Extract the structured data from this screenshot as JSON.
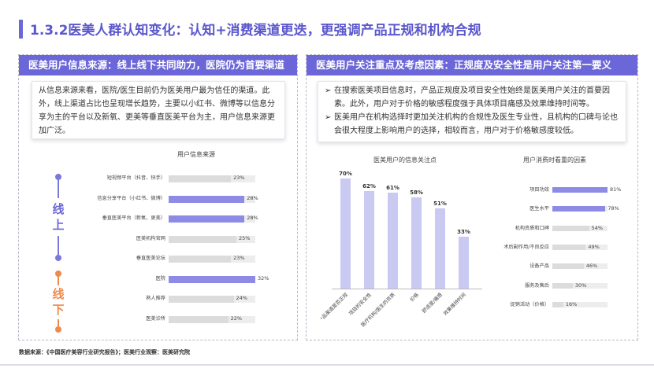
{
  "page_title": "1.3.2医美人群认知变化：认知+消费渠道更迭，更强调产品正规和机构合规",
  "left_panel": {
    "header": "医美用户信息来源：线上线下共同助力，医院仍为首要渠道",
    "description": "从信息来源来看，医院/医生目前仍为医美用户最为信任的渠道。此外，线上渠道占比也呈现增长趋势，主要以小红书、微博等以信息分享为主的平台以及新氧、更美等垂直医美平台为主，用户信息来源更加广泛。",
    "timeline": {
      "online_label": "线上",
      "offline_label": "线下"
    }
  },
  "right_panel": {
    "header": "医美用户关注重点及考虑因素：正规度及安全性是用户关注第一要义",
    "bullets": [
      "在搜索医美项目信息时，产品正规度及项目安全性始终是医美用户关注的首要因素。此外，用户对于价格的敏感程度强于具体项目痛感及效果维持时间等。",
      "医美用户在机构选择时更加关注机构的合规性及医生专业性，且机构的口碑与论也会很大程度上影响用户的选择，相较而言，用户对于价格敏感度较低。"
    ],
    "bullet_marker": "➢"
  },
  "footer": "数据来源：《中国医疗美容行业研究报告》；医美行业观察：医美研究院",
  "colors": {
    "accent": "#6b67d8",
    "bar_highlight": "#8d8be6",
    "bar_normal": "#dcdcdc",
    "vbar": "#c9c9f2",
    "online": "#7b77dd",
    "offline": "#f08a4b"
  },
  "chart_data": [
    {
      "type": "bar",
      "orientation": "horizontal",
      "title": "用户信息来源",
      "categories": [
        "短视频平台（抖音、快手）",
        "信息分享平台（小红书、微博）",
        "垂直医美平台（新氧、更美）",
        "医美机构官网",
        "垂直医美论坛",
        "医院",
        "熟人推荐",
        "医美诊所"
      ],
      "values": [
        23,
        28,
        28,
        25,
        23,
        32,
        24,
        22
      ],
      "labels": [
        "23%",
        "28%",
        "28%",
        "25%",
        "23%",
        "32%",
        "24%",
        "22%"
      ],
      "highlight": [
        false,
        true,
        true,
        false,
        false,
        true,
        false,
        false
      ],
      "xlim": [
        0,
        32
      ]
    },
    {
      "type": "bar",
      "orientation": "vertical",
      "title": "医美用户的信息关注点",
      "categories": [
        "产品渠道是否正规",
        "项目的安全性",
        "医疗机构/医生的资质",
        "价格",
        "舒适度/痛感",
        "效果维持时间"
      ],
      "values": [
        70,
        62,
        61,
        58,
        51,
        33
      ],
      "labels": [
        "70%",
        "62%",
        "61%",
        "58%",
        "51%",
        "33%"
      ],
      "ylim": [
        0,
        70
      ]
    },
    {
      "type": "bar",
      "orientation": "horizontal",
      "title": "用户消费时看重的因素",
      "categories": [
        "项目功效",
        "医生水平",
        "机构资质和口碑",
        "术后副作用/不良反应",
        "设备产品",
        "服务及售后",
        "促销活动（价格）"
      ],
      "values": [
        81,
        78,
        54,
        49,
        46,
        30,
        16
      ],
      "labels": [
        "81%",
        "78%",
        "54%",
        "49%",
        "46%",
        "30%",
        "16%"
      ],
      "highlight": [
        true,
        true,
        false,
        false,
        false,
        false,
        false
      ],
      "xlim": [
        0,
        81
      ]
    }
  ]
}
